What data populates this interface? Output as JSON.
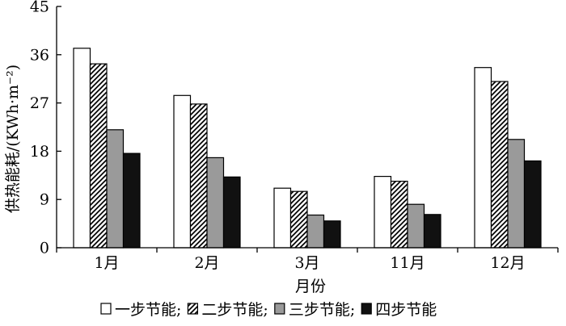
{
  "chart_data": {
    "type": "bar",
    "categories": [
      "1月",
      "2月",
      "3月",
      "11月",
      "12月"
    ],
    "series": [
      {
        "name": "一步节能",
        "values": [
          37.2,
          28.4,
          11.1,
          13.3,
          33.6
        ],
        "fill": "#ffffff",
        "pattern": "none"
      },
      {
        "name": "二步节能",
        "values": [
          34.3,
          26.8,
          10.5,
          12.4,
          31.0
        ],
        "fill": "#ffffff",
        "pattern": "diagonal-hatch"
      },
      {
        "name": "三步节能",
        "values": [
          22.0,
          16.8,
          6.1,
          8.1,
          20.2
        ],
        "fill": "#9a9a9a",
        "pattern": "none"
      },
      {
        "name": "四步节能",
        "values": [
          17.6,
          13.2,
          5.0,
          6.2,
          16.2
        ],
        "fill": "#111111",
        "pattern": "none"
      }
    ],
    "legend_separator": ";",
    "xlabel": "月份",
    "ylabel": "供热能耗/(KWh·m⁻²)",
    "ylim": [
      0,
      45
    ],
    "yticks": [
      0,
      9,
      18,
      27,
      36,
      45
    ],
    "grid": false,
    "legend_position": "bottom"
  }
}
